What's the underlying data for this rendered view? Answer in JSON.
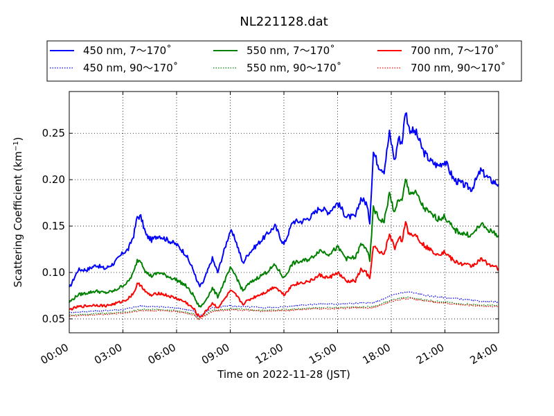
{
  "chart_data": {
    "type": "line",
    "title": "NL221128.dat",
    "xlabel": "Time on 2022-11-28 (JST)",
    "ylabel_main": "Scattering Coefficient (km",
    "ylabel_sup": "−1",
    "ylabel_end": ")",
    "x_unit": "hour",
    "xlim": [
      0,
      24
    ],
    "ylim": [
      0.035,
      0.295
    ],
    "x_ticks": [
      0,
      3,
      6,
      9,
      12,
      15,
      18,
      21,
      24
    ],
    "x_tick_labels": [
      "00:00",
      "03:00",
      "06:00",
      "09:00",
      "12:00",
      "15:00",
      "18:00",
      "21:00",
      "24:00"
    ],
    "y_ticks": [
      0.05,
      0.1,
      0.15,
      0.2,
      0.25
    ],
    "y_tick_labels": [
      "0.05",
      "0.10",
      "0.15",
      "0.20",
      "0.25"
    ],
    "grid": true,
    "legend_position": "top-outside",
    "series": [
      {
        "name": "450 nm, 7～170˚",
        "color": "#0000ff",
        "style": "solid",
        "x": [
          0,
          0.5,
          1,
          1.5,
          2,
          2.5,
          3,
          3.3,
          3.6,
          3.8,
          4,
          4.3,
          4.6,
          5,
          5.5,
          6,
          6.5,
          7,
          7.1,
          7.3,
          7.5,
          8,
          8.3,
          8.6,
          9,
          9.3,
          9.7,
          10,
          10.5,
          11,
          11.5,
          12,
          12.5,
          13,
          13.5,
          14,
          14.5,
          15,
          15.5,
          16,
          16.3,
          16.6,
          16.8,
          17,
          17.3,
          17.6,
          17.9,
          18.2,
          18.4,
          18.6,
          18.8,
          19,
          19.4,
          19.8,
          20.2,
          20.6,
          21,
          21.5,
          22,
          22.5,
          23,
          23.5,
          24
        ],
        "y": [
          0.083,
          0.103,
          0.103,
          0.108,
          0.104,
          0.11,
          0.121,
          0.125,
          0.14,
          0.16,
          0.16,
          0.14,
          0.135,
          0.14,
          0.135,
          0.13,
          0.12,
          0.1,
          0.092,
          0.085,
          0.09,
          0.115,
          0.1,
          0.12,
          0.145,
          0.135,
          0.11,
          0.12,
          0.13,
          0.14,
          0.15,
          0.13,
          0.155,
          0.155,
          0.16,
          0.17,
          0.165,
          0.175,
          0.16,
          0.16,
          0.18,
          0.175,
          0.155,
          0.23,
          0.215,
          0.21,
          0.25,
          0.22,
          0.245,
          0.24,
          0.275,
          0.255,
          0.25,
          0.23,
          0.22,
          0.215,
          0.22,
          0.2,
          0.195,
          0.19,
          0.21,
          0.2,
          0.195
        ]
      },
      {
        "name": "450 nm, 90～170˚",
        "color": "#0000ff",
        "style": "dotted",
        "x": [
          0,
          1,
          2,
          3,
          4,
          5,
          6,
          7,
          7.2,
          8,
          9,
          10,
          11,
          12,
          13,
          14,
          15,
          16,
          17,
          18,
          18.5,
          19,
          20,
          21,
          22,
          23,
          24
        ],
        "y": [
          0.057,
          0.058,
          0.059,
          0.06,
          0.064,
          0.063,
          0.062,
          0.058,
          0.052,
          0.062,
          0.064,
          0.063,
          0.062,
          0.063,
          0.065,
          0.066,
          0.066,
          0.067,
          0.067,
          0.075,
          0.078,
          0.079,
          0.075,
          0.073,
          0.071,
          0.069,
          0.068
        ]
      },
      {
        "name": "550 nm, 7～170˚",
        "color": "#008000",
        "style": "solid",
        "x": [
          0,
          0.5,
          1,
          1.5,
          2,
          2.5,
          3,
          3.3,
          3.6,
          3.8,
          4,
          4.3,
          4.6,
          5,
          5.5,
          6,
          6.5,
          7,
          7.1,
          7.3,
          7.5,
          8,
          8.3,
          8.6,
          9,
          9.3,
          9.7,
          10,
          10.5,
          11,
          11.5,
          12,
          12.5,
          13,
          13.5,
          14,
          14.5,
          15,
          15.5,
          16,
          16.3,
          16.6,
          16.8,
          17,
          17.3,
          17.6,
          17.9,
          18.2,
          18.4,
          18.6,
          18.8,
          19,
          19.4,
          19.8,
          20.2,
          20.6,
          21,
          21.5,
          22,
          22.5,
          23,
          23.5,
          24
        ],
        "y": [
          0.068,
          0.076,
          0.078,
          0.08,
          0.078,
          0.08,
          0.086,
          0.09,
          0.1,
          0.113,
          0.113,
          0.1,
          0.096,
          0.1,
          0.096,
          0.092,
          0.086,
          0.074,
          0.068,
          0.063,
          0.066,
          0.083,
          0.074,
          0.087,
          0.104,
          0.097,
          0.08,
          0.087,
          0.094,
          0.1,
          0.108,
          0.094,
          0.11,
          0.112,
          0.115,
          0.124,
          0.12,
          0.127,
          0.115,
          0.116,
          0.13,
          0.127,
          0.112,
          0.17,
          0.158,
          0.155,
          0.185,
          0.163,
          0.18,
          0.176,
          0.2,
          0.187,
          0.185,
          0.17,
          0.163,
          0.158,
          0.16,
          0.146,
          0.142,
          0.14,
          0.152,
          0.145,
          0.14
        ]
      },
      {
        "name": "550 nm, 90～170˚",
        "color": "#008000",
        "style": "dotted",
        "x": [
          0,
          1,
          2,
          3,
          4,
          5,
          6,
          7,
          7.2,
          8,
          9,
          10,
          11,
          12,
          13,
          14,
          15,
          16,
          17,
          18,
          18.5,
          19,
          20,
          21,
          22,
          23,
          24
        ],
        "y": [
          0.054,
          0.055,
          0.056,
          0.057,
          0.06,
          0.06,
          0.059,
          0.055,
          0.05,
          0.059,
          0.061,
          0.06,
          0.059,
          0.06,
          0.061,
          0.062,
          0.062,
          0.063,
          0.063,
          0.07,
          0.072,
          0.073,
          0.07,
          0.068,
          0.066,
          0.065,
          0.064
        ]
      },
      {
        "name": "700 nm, 7～170˚",
        "color": "#ff0000",
        "style": "solid",
        "x": [
          0,
          0.5,
          1,
          1.5,
          2,
          2.5,
          3,
          3.3,
          3.6,
          3.8,
          4,
          4.3,
          4.6,
          5,
          5.5,
          6,
          6.5,
          7,
          7.1,
          7.3,
          7.5,
          8,
          8.3,
          8.6,
          9,
          9.3,
          9.7,
          10,
          10.5,
          11,
          11.5,
          12,
          12.5,
          13,
          13.5,
          14,
          14.5,
          15,
          15.5,
          16,
          16.3,
          16.6,
          16.8,
          17,
          17.3,
          17.6,
          17.9,
          18.2,
          18.4,
          18.6,
          18.8,
          19,
          19.4,
          19.8,
          20.2,
          20.6,
          21,
          21.5,
          22,
          22.5,
          23,
          23.5,
          24
        ],
        "y": [
          0.06,
          0.063,
          0.064,
          0.065,
          0.064,
          0.066,
          0.069,
          0.072,
          0.078,
          0.087,
          0.087,
          0.078,
          0.075,
          0.078,
          0.075,
          0.072,
          0.068,
          0.06,
          0.056,
          0.052,
          0.055,
          0.067,
          0.062,
          0.069,
          0.08,
          0.076,
          0.066,
          0.07,
          0.075,
          0.079,
          0.085,
          0.076,
          0.087,
          0.089,
          0.091,
          0.097,
          0.094,
          0.1,
          0.09,
          0.091,
          0.103,
          0.1,
          0.092,
          0.13,
          0.121,
          0.12,
          0.141,
          0.126,
          0.138,
          0.135,
          0.152,
          0.142,
          0.14,
          0.13,
          0.124,
          0.12,
          0.122,
          0.112,
          0.109,
          0.107,
          0.114,
          0.109,
          0.104
        ]
      },
      {
        "name": "700 nm, 90～170˚",
        "color": "#ff0000",
        "style": "dotted",
        "x": [
          0,
          1,
          2,
          3,
          4,
          5,
          6,
          7,
          7.2,
          8,
          9,
          10,
          11,
          12,
          13,
          14,
          15,
          16,
          17,
          18,
          18.5,
          19,
          20,
          21,
          22,
          23,
          24
        ],
        "y": [
          0.053,
          0.054,
          0.055,
          0.056,
          0.059,
          0.059,
          0.058,
          0.054,
          0.049,
          0.058,
          0.06,
          0.059,
          0.058,
          0.059,
          0.06,
          0.061,
          0.061,
          0.062,
          0.062,
          0.069,
          0.071,
          0.072,
          0.069,
          0.067,
          0.065,
          0.064,
          0.063
        ]
      }
    ]
  }
}
